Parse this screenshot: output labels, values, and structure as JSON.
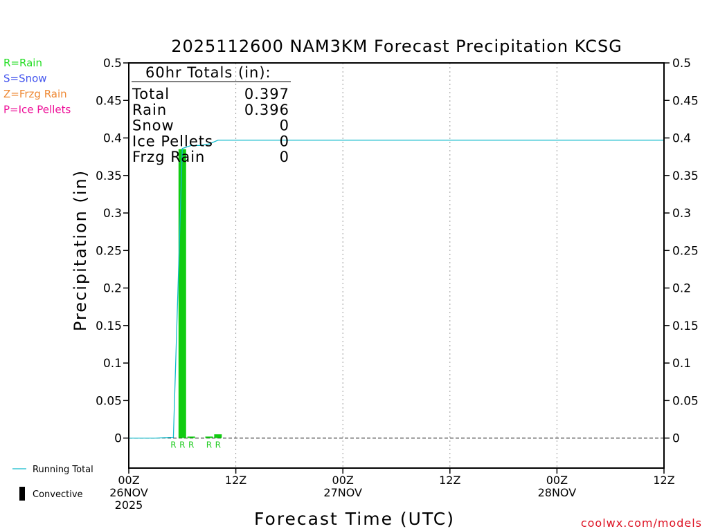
{
  "chart_data": {
    "type": "bar",
    "title": "2025112600 NAM3KM Forecast Precipitation KCSG",
    "xlabel": "Forecast Time (UTC)",
    "ylabel": "Precipitation (in)",
    "ylim": [
      -0.04,
      0.5
    ],
    "xlim_hours": [
      0,
      60
    ],
    "y_ticks": [
      0,
      0.05,
      0.1,
      0.15,
      0.2,
      0.25,
      0.3,
      0.35,
      0.4,
      0.45,
      0.5
    ],
    "y_tick_labels": [
      "0",
      "0.05",
      "0.1",
      "0.15",
      "0.2",
      "0.25",
      "0.3",
      "0.35",
      "0.4",
      "0.45",
      "0.5"
    ],
    "x_ticks": [
      {
        "hour": 0,
        "lines": [
          "00Z",
          "26NOV",
          "2025"
        ]
      },
      {
        "hour": 12,
        "lines": [
          "12Z"
        ]
      },
      {
        "hour": 24,
        "lines": [
          "00Z",
          "27NOV"
        ]
      },
      {
        "hour": 36,
        "lines": [
          "12Z"
        ]
      },
      {
        "hour": 48,
        "lines": [
          "00Z",
          "28NOV"
        ]
      },
      {
        "hour": 60,
        "lines": [
          "12Z"
        ]
      }
    ],
    "grid": "vertical dotted",
    "bars": [
      {
        "hour": 6,
        "value": 0.385,
        "type": "R"
      },
      {
        "hour": 7,
        "value": 0.002,
        "type": "R"
      },
      {
        "hour": 9,
        "value": 0.002,
        "type": "R"
      },
      {
        "hour": 10,
        "value": 0.005,
        "type": "R"
      }
    ],
    "type_marks": [
      {
        "hour": 5,
        "label": "R"
      },
      {
        "hour": 6,
        "label": "R"
      },
      {
        "hour": 7,
        "label": "R"
      },
      {
        "hour": 9,
        "label": "R"
      },
      {
        "hour": 10,
        "label": "R"
      }
    ],
    "running_total": {
      "name": "Running Total",
      "hours": [
        0,
        1,
        2,
        3,
        4,
        5,
        6,
        7,
        8,
        9,
        10,
        11,
        12,
        60
      ],
      "values": [
        0,
        0,
        0,
        0,
        0.0005,
        0.001,
        0.386,
        0.39,
        0.39,
        0.392,
        0.397,
        0.397,
        0.397,
        0.397
      ]
    },
    "totals": {
      "header": "60hr Totals (in):",
      "rows": [
        {
          "label": "Total",
          "value": "0.397"
        },
        {
          "label": "Rain",
          "value": "0.396"
        },
        {
          "label": "Snow",
          "value": "0"
        },
        {
          "label": "Ice Pellets",
          "value": "0"
        },
        {
          "label": "Frzg Rain",
          "value": "0"
        }
      ]
    },
    "type_legend": [
      {
        "label": "R=Rain",
        "color": "#22dd22"
      },
      {
        "label": "S=Snow",
        "color": "#4455ee"
      },
      {
        "label": "Z=Frzg Rain",
        "color": "#ee8833"
      },
      {
        "label": "P=Ice Pellets",
        "color": "#ee1199"
      }
    ],
    "line_legend": [
      {
        "label": "Running Total",
        "kind": "line",
        "color": "#11bbcc"
      },
      {
        "label": "Convective",
        "kind": "bar",
        "color": "#000000"
      }
    ],
    "credit": "coolwx.com/models",
    "colors": {
      "rain_bar": "#11cc11",
      "running_total": "#11bbcc",
      "credit": "#dd1122"
    }
  }
}
